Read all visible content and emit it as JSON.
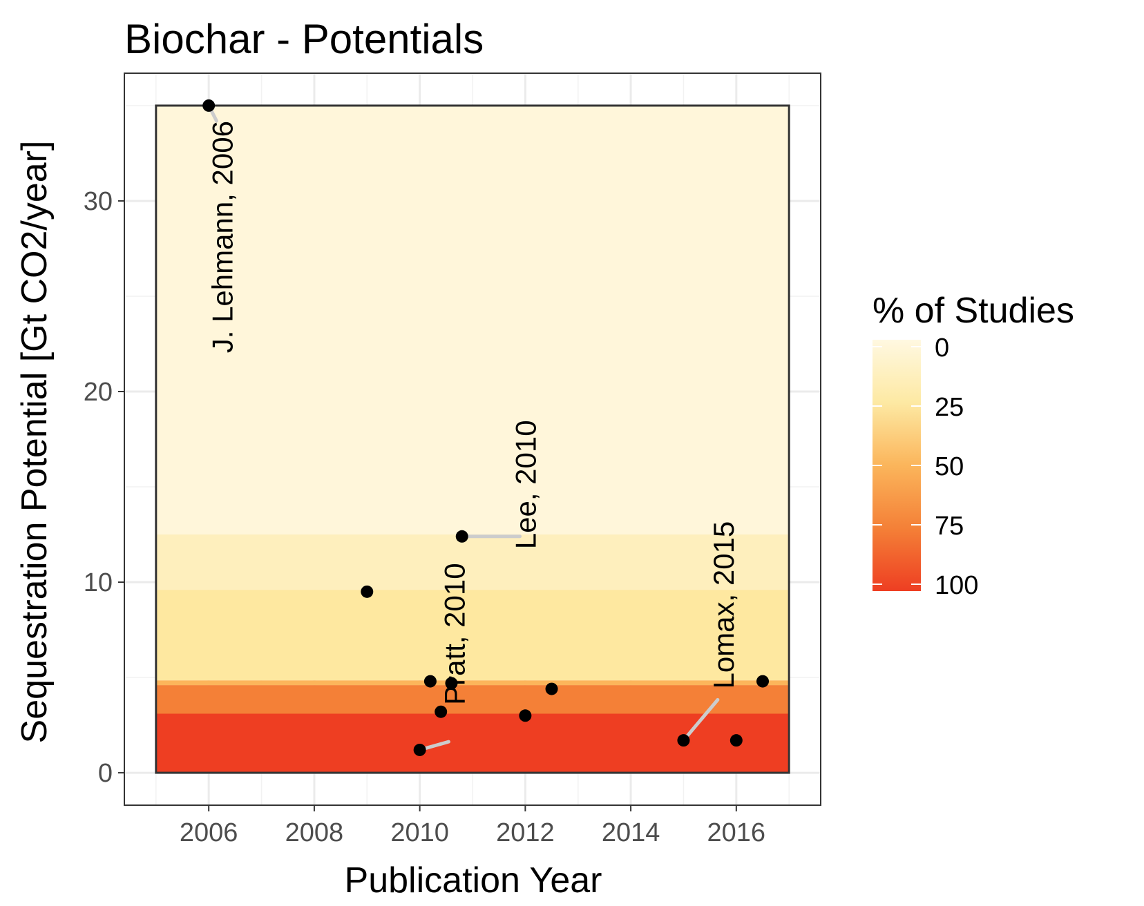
{
  "chart_data": {
    "type": "scatter",
    "title": "Biochar - Potentials",
    "xlabel": "Publication Year",
    "ylabel": "Sequestration Potential [Gt CO2/year]",
    "xlim": [
      2004.4,
      2017.6
    ],
    "ylim": [
      -1.7,
      36.7
    ],
    "x_ticks": [
      2006,
      2008,
      2010,
      2012,
      2014,
      2016
    ],
    "y_ticks": [
      0,
      10,
      20,
      30
    ],
    "grid": true,
    "points": [
      {
        "x": 2006.0,
        "y": 35.0
      },
      {
        "x": 2009.0,
        "y": 9.5
      },
      {
        "x": 2010.0,
        "y": 1.2
      },
      {
        "x": 2010.2,
        "y": 4.8
      },
      {
        "x": 2010.4,
        "y": 3.2
      },
      {
        "x": 2010.6,
        "y": 4.7
      },
      {
        "x": 2010.8,
        "y": 12.4
      },
      {
        "x": 2012.0,
        "y": 3.0
      },
      {
        "x": 2012.5,
        "y": 4.4
      },
      {
        "x": 2015.0,
        "y": 1.7
      },
      {
        "x": 2016.0,
        "y": 1.7
      },
      {
        "x": 2016.5,
        "y": 4.8
      }
    ],
    "annotations": [
      {
        "text": "J. Lehmann, 2006",
        "point": [
          2006.0,
          35.0
        ],
        "label_x": 2006.45,
        "label_top_y": 34.2
      },
      {
        "text": "Lee, 2010",
        "point": [
          2010.8,
          12.4
        ],
        "label_x": 2012.2,
        "label_top_y": 18.5
      },
      {
        "text": "Pratt, 2010",
        "point": [
          2010.0,
          1.2
        ],
        "label_x": 2010.85,
        "label_top_y": 11.0
      },
      {
        "text": "Lomax, 2015",
        "point": [
          2015.0,
          1.7
        ],
        "label_x": 2015.95,
        "label_top_y": 13.2
      }
    ],
    "bands": {
      "x_range": [
        2005,
        2017
      ],
      "rows": [
        {
          "y0": 0,
          "y1": 3.1,
          "percent": 100
        },
        {
          "y0": 3.1,
          "y1": 4.6,
          "percent": 75
        },
        {
          "y0": 4.6,
          "y1": 4.85,
          "percent": 50
        },
        {
          "y0": 4.85,
          "y1": 9.6,
          "percent": 25
        },
        {
          "y0": 9.6,
          "y1": 12.5,
          "percent": 15
        },
        {
          "y0": 12.5,
          "y1": 35.0,
          "percent": 5
        }
      ]
    },
    "legend": {
      "title": "% of Studies",
      "ticks": [
        "0",
        "25",
        "50",
        "75",
        "100"
      ],
      "position": "right",
      "colors": [
        "#fff8e1",
        "#fde9a3",
        "#fbb55b",
        "#f48037",
        "#ee3e22"
      ]
    }
  }
}
